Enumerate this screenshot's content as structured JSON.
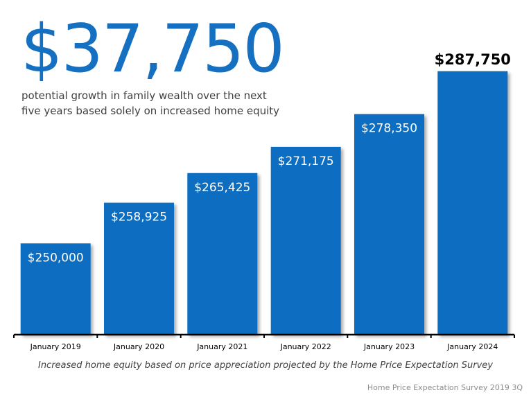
{
  "headline": {
    "amount": "$37,750",
    "line1": "potential growth in family wealth over the next",
    "line2": "five years based solely on increased home equity"
  },
  "colors": {
    "bar": "#0d6ec1",
    "headline": "#1670c2",
    "bar_label": "#ffffff",
    "top_label": "#000000",
    "axis": "#000000"
  },
  "chart_data": {
    "type": "bar",
    "categories": [
      "January 2019",
      "January 2020",
      "January 2021",
      "January 2022",
      "January 2023",
      "January 2024"
    ],
    "values": [
      250000,
      258925,
      265425,
      271175,
      278350,
      287750
    ],
    "value_labels": [
      "$250,000",
      "$258,925",
      "$265,425",
      "$271,175",
      "$278,350",
      "$287,750"
    ],
    "highlighted_index": 5,
    "title": "",
    "xlabel": "",
    "ylabel": "",
    "ylim": [
      230000,
      290000
    ],
    "grid": false,
    "legend": "none"
  },
  "footnote": "Increased home equity based on price appreciation projected by the Home Price Expectation Survey",
  "source": "Home Price Expectation Survey 2019 3Q"
}
